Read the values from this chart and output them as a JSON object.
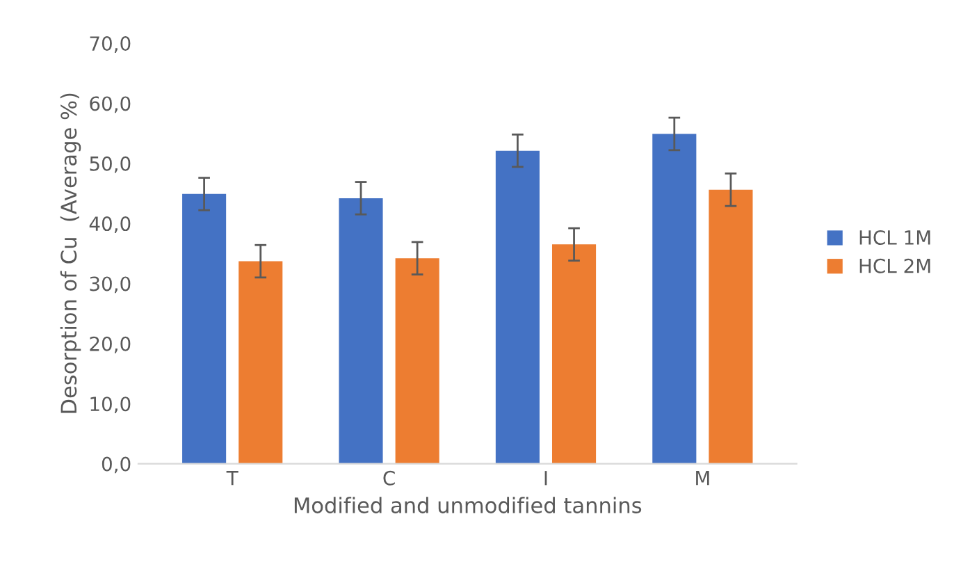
{
  "chart_data": {
    "type": "bar",
    "xlabel": "Modified and unmodified tannins",
    "ylabel": "Desorption of Cu  (Average %)",
    "categories": [
      "T",
      "C",
      "I",
      "M"
    ],
    "series": [
      {
        "name": "HCL 1M",
        "color": "#4472c4",
        "values": [
          44.9,
          44.2,
          52.1,
          54.9
        ],
        "errors": [
          2.7,
          2.7,
          2.7,
          2.7
        ]
      },
      {
        "name": "HCL 2M",
        "color": "#ed7d31",
        "values": [
          33.7,
          34.2,
          36.5,
          45.6
        ],
        "errors": [
          2.7,
          2.7,
          2.7,
          2.7
        ]
      }
    ],
    "ylim": [
      0,
      70
    ],
    "yticks": [
      {
        "value": 0,
        "label": "0,0"
      },
      {
        "value": 10,
        "label": "10,0"
      },
      {
        "value": 20,
        "label": "20,0"
      },
      {
        "value": 30,
        "label": "30,0"
      },
      {
        "value": 40,
        "label": "40,0"
      },
      {
        "value": 50,
        "label": "50,0"
      },
      {
        "value": 60,
        "label": "60,0"
      },
      {
        "value": 70,
        "label": "70,0"
      }
    ],
    "grid": false,
    "legend": "right"
  }
}
